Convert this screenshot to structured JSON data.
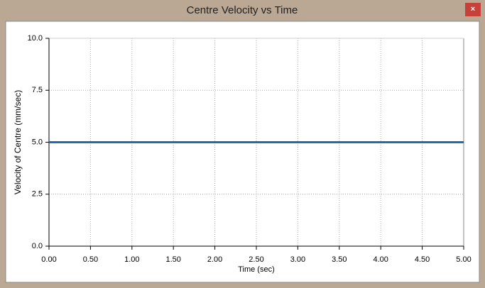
{
  "window": {
    "title": "Centre Velocity vs Time",
    "close": "×"
  },
  "chart_data": {
    "type": "line",
    "xlabel": "Time (sec)",
    "ylabel": "Velocity of Centre (mm/sec)",
    "x": [
      0,
      5
    ],
    "series": [
      {
        "color": "#1f6db0",
        "values": [
          5,
          5
        ]
      }
    ],
    "xlim": [
      0,
      5
    ],
    "xticks": [
      {
        "value": 0,
        "label": "0.00"
      },
      {
        "value": 0.5,
        "label": "0.50"
      },
      {
        "value": 1,
        "label": "1.00"
      },
      {
        "value": 1.5,
        "label": "1.50"
      },
      {
        "value": 2,
        "label": "2.00"
      },
      {
        "value": 2.5,
        "label": "2.50"
      },
      {
        "value": 3,
        "label": "3.00"
      },
      {
        "value": 3.5,
        "label": "3.50"
      },
      {
        "value": 4,
        "label": "4.00"
      },
      {
        "value": 4.5,
        "label": "4.50"
      },
      {
        "value": 5,
        "label": "5.00"
      }
    ],
    "ylim": [
      0,
      10
    ],
    "yticks": [
      {
        "value": 0,
        "label": "0.0"
      },
      2.5,
      {
        "value": 5,
        "label": "5.0"
      },
      7.5,
      {
        "value": 10,
        "label": "10.0"
      }
    ],
    "grid": true
  }
}
